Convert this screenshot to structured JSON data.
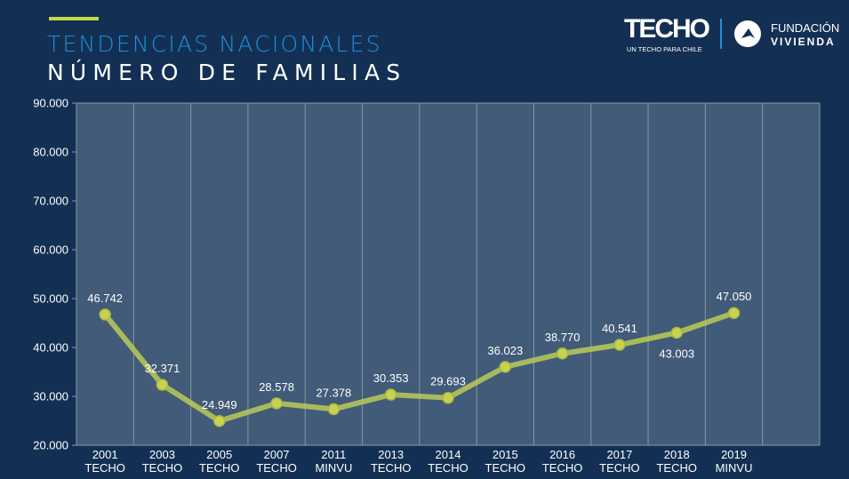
{
  "header": {
    "title_line1": "TENDENCIAS NACIONALES",
    "title_line2": "NÚMERO DE FAMILIAS",
    "accent_color": "#c6d84a"
  },
  "logos": {
    "techo_name": "TECHO",
    "techo_tagline": "UN TECHO PARA CHILE",
    "fundacion_line1": "FUNDACIÓN",
    "fundacion_line2": "VIVIENDA"
  },
  "chart_data": {
    "type": "line",
    "title": "TENDENCIAS NACIONALES — NÚMERO DE FAMILIAS",
    "xlabel": "",
    "ylabel": "",
    "categories": [
      [
        "2001",
        "TECHO"
      ],
      [
        "2003",
        "TECHO"
      ],
      [
        "2005",
        "TECHO"
      ],
      [
        "2007",
        "TECHO"
      ],
      [
        "2011",
        "MINVU"
      ],
      [
        "2013",
        "TECHO"
      ],
      [
        "2014",
        "TECHO"
      ],
      [
        "2015",
        "TECHO"
      ],
      [
        "2016",
        "TECHO"
      ],
      [
        "2017",
        "TECHO"
      ],
      [
        "2018",
        "TECHO"
      ],
      [
        "2019",
        "MINVU"
      ],
      [
        "",
        ""
      ]
    ],
    "series": [
      {
        "name": "Número de familias",
        "color": "#b5c45a",
        "values": [
          46742,
          32371,
          24949,
          28578,
          27378,
          30353,
          29693,
          36023,
          38770,
          40541,
          43003,
          47050,
          null
        ],
        "labels": [
          "46.742",
          "32.371",
          "24.949",
          "28.578",
          "27.378",
          "30.353",
          "29.693",
          "36.023",
          "38.770",
          "40.541",
          "43.003",
          "47.050",
          ""
        ],
        "label_below": [
          false,
          false,
          false,
          false,
          false,
          false,
          false,
          false,
          false,
          false,
          true,
          false,
          false
        ]
      }
    ],
    "ylim": [
      20000,
      90000
    ],
    "yticks": [
      20000,
      30000,
      40000,
      50000,
      60000,
      70000,
      80000,
      90000
    ],
    "ytick_labels": [
      "20.000",
      "30.000",
      "40.000",
      "50.000",
      "60.000",
      "70.000",
      "80.000",
      "90.000"
    ],
    "grid": "vertical",
    "legend": "none",
    "plot_background": "#415b78"
  }
}
